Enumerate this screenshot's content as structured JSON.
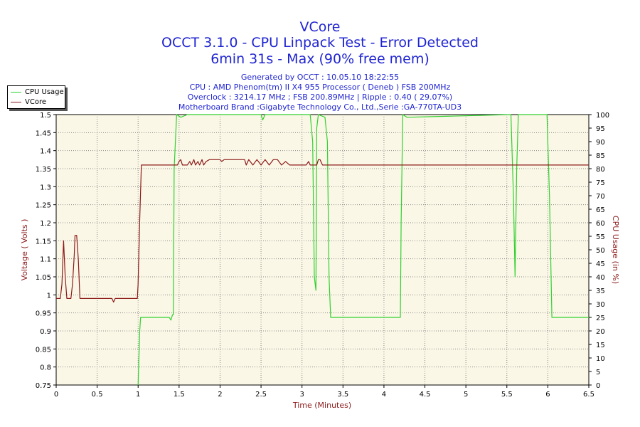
{
  "header": {
    "title_1": "VCore",
    "title_2": "OCCT 3.1.0 - CPU Linpack Test - Error Detected",
    "title_3": "6min 31s - Max (90% free mem)",
    "info_lines": [
      "Generated by OCCT : 10.05.10 18:22:55",
      "CPU : AMD Phenom(tm) II X4 955 Processor ( Deneb ) FSB 200MHz",
      "Overclock : 3214.17 MHz ; FSB 200.89MHz | Ripple : 0.40 ( 29.07%)",
      "Motherboard Brand :Gigabyte Technology Co., Ltd.,Serie :GA-770TA-UD3"
    ]
  },
  "colors": {
    "title": "#1f24d1",
    "plot_bg": "#fbf7e6",
    "grid": "#8a8a8a",
    "cpu_usage": "#2fd12f",
    "vcore": "#8b1a1a",
    "axis_label": "#8b1a1a"
  },
  "chart_data": {
    "type": "line",
    "xlabel": "Time (Minutes)",
    "ylabel": "Voltage ( Volts )",
    "y2label": "CPU Usage (in %)",
    "xlim": [
      0,
      6.5
    ],
    "ylim": [
      0.75,
      1.5
    ],
    "y2lim": [
      0,
      100
    ],
    "xticks": [
      "0",
      "0.5",
      "1",
      "1.5",
      "2",
      "2.5",
      "3",
      "3.5",
      "4",
      "4.5",
      "5",
      "5.5",
      "6",
      "6.5"
    ],
    "yticks": [
      "0.75",
      "0.8",
      "0.85",
      "0.9",
      "0.95",
      "1",
      "1.05",
      "1.1",
      "1.15",
      "1.2",
      "1.25",
      "1.3",
      "1.35",
      "1.4",
      "1.45",
      "1.5"
    ],
    "y2ticks": [
      "0",
      "5",
      "10",
      "15",
      "20",
      "25",
      "30",
      "35",
      "40",
      "45",
      "50",
      "55",
      "60",
      "65",
      "70",
      "75",
      "80",
      "85",
      "90",
      "95",
      "100"
    ],
    "grid": true,
    "legend_position": "top-left",
    "series": [
      {
        "name": "CPU Usage",
        "axis": "right",
        "color": "#2fd12f",
        "points": [
          [
            1.0,
            0
          ],
          [
            1.02,
            20
          ],
          [
            1.03,
            25
          ],
          [
            1.38,
            25
          ],
          [
            1.4,
            24
          ],
          [
            1.42,
            26
          ],
          [
            1.43,
            26
          ],
          [
            1.44,
            80
          ],
          [
            1.47,
            100
          ],
          [
            1.52,
            99
          ],
          [
            1.6,
            100
          ],
          [
            2.5,
            100
          ],
          [
            2.52,
            98
          ],
          [
            2.55,
            100
          ],
          [
            3.1,
            100
          ],
          [
            3.13,
            90
          ],
          [
            3.15,
            40
          ],
          [
            3.17,
            35
          ],
          [
            3.18,
            95
          ],
          [
            3.2,
            100
          ],
          [
            3.28,
            99
          ],
          [
            3.31,
            90
          ],
          [
            3.33,
            40
          ],
          [
            3.35,
            25
          ],
          [
            3.4,
            25
          ],
          [
            3.42,
            25
          ],
          [
            4.2,
            25
          ],
          [
            4.21,
            60
          ],
          [
            4.23,
            100
          ],
          [
            4.28,
            99
          ],
          [
            5.55,
            100
          ],
          [
            5.58,
            70
          ],
          [
            5.6,
            40
          ],
          [
            5.62,
            80
          ],
          [
            5.64,
            100
          ],
          [
            5.99,
            100
          ],
          [
            6.02,
            70
          ],
          [
            6.05,
            25
          ],
          [
            6.5,
            25
          ]
        ]
      },
      {
        "name": "VCore",
        "axis": "left",
        "color": "#8b1a1a",
        "points": [
          [
            0.0,
            0.99
          ],
          [
            0.05,
            0.99
          ],
          [
            0.07,
            1.03
          ],
          [
            0.09,
            1.15
          ],
          [
            0.11,
            1.05
          ],
          [
            0.13,
            0.99
          ],
          [
            0.18,
            0.99
          ],
          [
            0.2,
            1.03
          ],
          [
            0.22,
            1.11
          ],
          [
            0.23,
            1.165
          ],
          [
            0.25,
            1.165
          ],
          [
            0.27,
            1.1
          ],
          [
            0.29,
            0.99
          ],
          [
            0.3,
            0.99
          ],
          [
            0.68,
            0.99
          ],
          [
            0.7,
            0.98
          ],
          [
            0.72,
            0.99
          ],
          [
            0.99,
            0.99
          ],
          [
            1.0,
            1.03
          ],
          [
            1.02,
            1.21
          ],
          [
            1.04,
            1.36
          ],
          [
            1.05,
            1.36
          ],
          [
            1.48,
            1.36
          ],
          [
            1.5,
            1.37
          ],
          [
            1.52,
            1.375
          ],
          [
            1.54,
            1.36
          ],
          [
            1.6,
            1.36
          ],
          [
            1.63,
            1.37
          ],
          [
            1.65,
            1.36
          ],
          [
            1.68,
            1.375
          ],
          [
            1.7,
            1.36
          ],
          [
            1.73,
            1.37
          ],
          [
            1.75,
            1.36
          ],
          [
            1.78,
            1.375
          ],
          [
            1.8,
            1.36
          ],
          [
            1.83,
            1.37
          ],
          [
            1.87,
            1.375
          ],
          [
            2.0,
            1.375
          ],
          [
            2.02,
            1.37
          ],
          [
            2.05,
            1.375
          ],
          [
            2.3,
            1.375
          ],
          [
            2.32,
            1.36
          ],
          [
            2.35,
            1.375
          ],
          [
            2.4,
            1.36
          ],
          [
            2.45,
            1.375
          ],
          [
            2.5,
            1.36
          ],
          [
            2.55,
            1.375
          ],
          [
            2.6,
            1.36
          ],
          [
            2.65,
            1.375
          ],
          [
            2.7,
            1.375
          ],
          [
            2.75,
            1.36
          ],
          [
            2.8,
            1.37
          ],
          [
            2.85,
            1.36
          ],
          [
            2.9,
            1.36
          ],
          [
            2.95,
            1.36
          ],
          [
            3.0,
            1.36
          ],
          [
            3.05,
            1.36
          ],
          [
            3.08,
            1.37
          ],
          [
            3.1,
            1.36
          ],
          [
            3.18,
            1.36
          ],
          [
            3.2,
            1.375
          ],
          [
            3.22,
            1.375
          ],
          [
            3.25,
            1.36
          ],
          [
            6.5,
            1.36
          ]
        ]
      }
    ]
  }
}
